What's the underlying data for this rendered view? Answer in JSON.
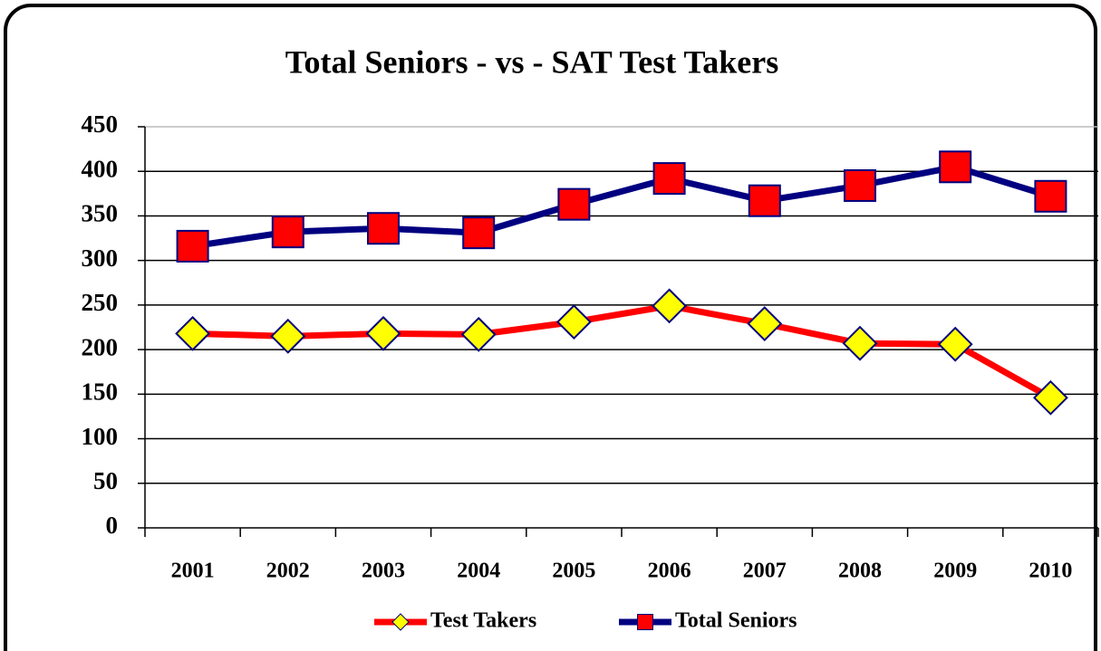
{
  "chart_data": {
    "type": "line",
    "title": "Total Seniors - vs - SAT Test Takers",
    "categories": [
      "2001",
      "2002",
      "2003",
      "2004",
      "2005",
      "2006",
      "2007",
      "2008",
      "2009",
      "2010"
    ],
    "series": [
      {
        "name": "Test Takers",
        "color": "#ff0000",
        "marker": "diamond",
        "marker_fill": "#ffff00",
        "marker_edge": "#000080",
        "values": [
          218,
          215,
          218,
          217,
          231,
          249,
          229,
          207,
          206,
          146
        ]
      },
      {
        "name": "Total Seniors",
        "color": "#000080",
        "marker": "square",
        "marker_fill": "#ff0000",
        "marker_edge": "#000080",
        "values": [
          316,
          332,
          336,
          331,
          363,
          392,
          367,
          384,
          405,
          372
        ]
      }
    ],
    "ylim": [
      0,
      450
    ],
    "yticks": [
      0,
      50,
      100,
      150,
      200,
      250,
      300,
      350,
      400,
      450
    ],
    "grid": true,
    "legend": "bottom"
  }
}
